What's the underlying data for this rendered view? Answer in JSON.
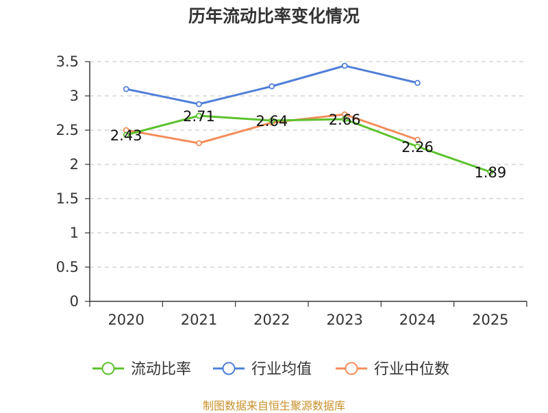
{
  "chart_data": {
    "type": "line",
    "title": "历年流动比率变化情况",
    "categories": [
      "2020",
      "2021",
      "2022",
      "2023",
      "2024",
      "2025"
    ],
    "ylim": [
      0,
      3.5
    ],
    "yticks": [
      "0",
      "0.5",
      "1",
      "1.5",
      "2",
      "2.5",
      "3",
      "3.5"
    ],
    "grid": true,
    "legend_position": "bottom",
    "series": [
      {
        "name": "流动比率",
        "color": "#5cc12c",
        "values": [
          2.43,
          2.71,
          2.64,
          2.66,
          2.26,
          1.89
        ],
        "labels": [
          "2.43",
          "2.71",
          "2.64",
          "2.66",
          "2.26",
          "1.89"
        ]
      },
      {
        "name": "行业均值",
        "color": "#4f7fd8",
        "values": [
          3.1,
          2.88,
          3.14,
          3.44,
          3.19,
          null
        ]
      },
      {
        "name": "行业中位数",
        "color": "#f48c5a",
        "values": [
          2.5,
          2.31,
          2.61,
          2.73,
          2.36,
          null
        ]
      }
    ]
  },
  "source": "制图数据来自恒生聚源数据库"
}
